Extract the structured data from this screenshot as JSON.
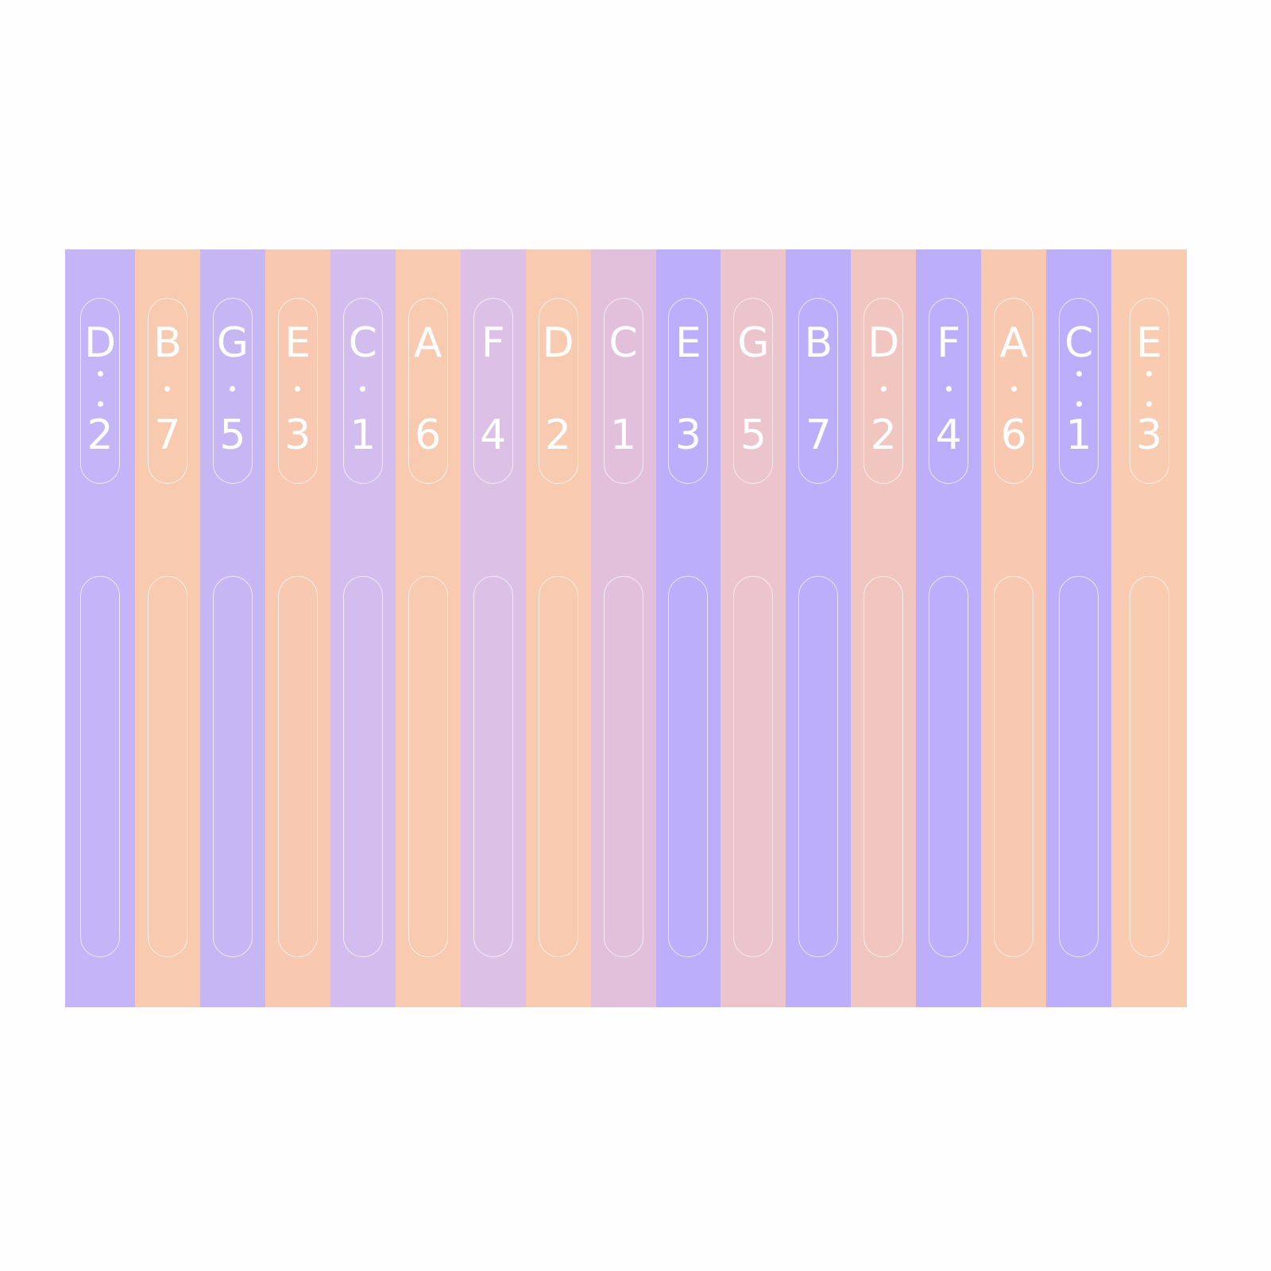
{
  "keys": [
    {
      "note": "D",
      "number": "2",
      "dots": 2,
      "color": "#c3b5f7"
    },
    {
      "note": "B",
      "number": "7",
      "dots": 1,
      "color": "#f8cbb0"
    },
    {
      "note": "G",
      "number": "5",
      "dots": 1,
      "color": "#c7b6f4"
    },
    {
      "note": "E",
      "number": "3",
      "dots": 1,
      "color": "#f8c9b0"
    },
    {
      "note": "C",
      "number": "1",
      "dots": 1,
      "color": "#d2bdee"
    },
    {
      "note": "A",
      "number": "6",
      "dots": 0,
      "color": "#f8cbb0"
    },
    {
      "note": "F",
      "number": "4",
      "dots": 0,
      "color": "#dcc0e6"
    },
    {
      "note": "D",
      "number": "2",
      "dots": 0,
      "color": "#f8cbb0"
    },
    {
      "note": "C",
      "number": "1",
      "dots": 0,
      "color": "#e2c0dc"
    },
    {
      "note": "E",
      "number": "3",
      "dots": 0,
      "color": "#bcaefa"
    },
    {
      "note": "G",
      "number": "5",
      "dots": 0,
      "color": "#ecc4cc"
    },
    {
      "note": "B",
      "number": "7",
      "dots": 0,
      "color": "#bcaefa"
    },
    {
      "note": "D",
      "number": "2",
      "dots": 1,
      "color": "#f1c6c0"
    },
    {
      "note": "F",
      "number": "4",
      "dots": 1,
      "color": "#bcaefa"
    },
    {
      "note": "A",
      "number": "6",
      "dots": 1,
      "color": "#f8c9b0"
    },
    {
      "note": "C",
      "number": "1",
      "dots": 2,
      "color": "#bcaefa"
    },
    {
      "note": "E",
      "number": "3",
      "dots": 2,
      "color": "#f9cbb0"
    }
  ]
}
